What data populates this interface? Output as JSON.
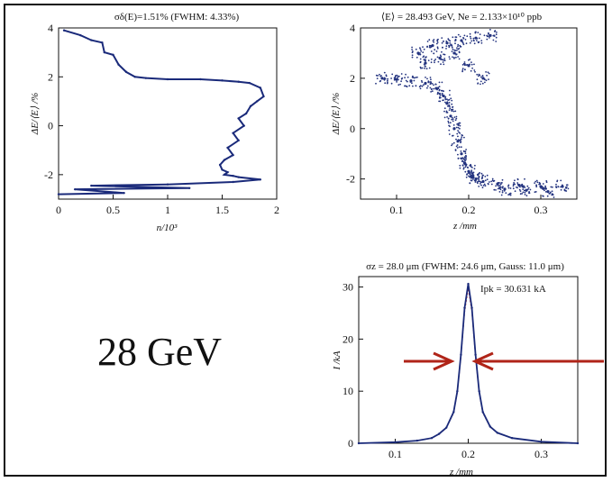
{
  "energy_label": "28 GeV",
  "colors": {
    "trace": "#1a2a7a",
    "scatter": "#23337f",
    "arrow": "#b02418",
    "fit": "#d23b30"
  },
  "chart_data": [
    {
      "type": "line",
      "title": "σδ(E)=1.51% (FWHM: 4.33%)",
      "xlabel": "n/10³",
      "ylabel": "ΔE/⟨E⟩ /%",
      "xlim": [
        0,
        2
      ],
      "ylim": [
        -3,
        4
      ],
      "xticks": [
        "0",
        "0.5",
        "1",
        "1.5",
        "2"
      ],
      "yticks": [
        "4",
        "2",
        "0",
        "-2"
      ],
      "series": [
        {
          "x": [
            0.05,
            0.2,
            0.3,
            0.4,
            0.42,
            0.5,
            0.55,
            0.62,
            0.7,
            0.8,
            1.0,
            1.3,
            1.5,
            1.65,
            1.75,
            1.85,
            1.88,
            1.82,
            1.76,
            1.72,
            1.65,
            1.7,
            1.6,
            1.65,
            1.55,
            1.6,
            1.52,
            1.48,
            1.5,
            1.55,
            1.52,
            1.6,
            1.65,
            1.85,
            1.6,
            1.0,
            0.3,
            1.2,
            0.15,
            0.6,
            0.0
          ],
          "y": [
            3.9,
            3.7,
            3.5,
            3.4,
            3.0,
            2.9,
            2.5,
            2.2,
            2.0,
            1.95,
            1.9,
            1.9,
            1.85,
            1.8,
            1.75,
            1.55,
            1.2,
            1.0,
            0.8,
            0.5,
            0.3,
            0.0,
            -0.3,
            -0.6,
            -0.9,
            -1.2,
            -1.4,
            -1.6,
            -1.8,
            -1.9,
            -2.0,
            -2.05,
            -2.1,
            -2.2,
            -2.3,
            -2.4,
            -2.45,
            -2.55,
            -2.6,
            -2.75,
            -2.8
          ]
        }
      ]
    },
    {
      "type": "scatter",
      "title": "⟨E⟩ = 28.493 GeV, Ne = 2.133×10¹⁰ ppb",
      "xlabel": "z /mm",
      "ylabel": "ΔE/⟨E⟩ /%",
      "xlim": [
        0.05,
        0.35
      ],
      "ylim": [
        -2.8,
        4
      ],
      "xticks": [
        "0.1",
        "0.2",
        "0.3"
      ],
      "yticks": [
        "4",
        "2",
        "0",
        "-2"
      ],
      "series": [
        {
          "x": [
            0.08,
            0.1,
            0.12,
            0.14,
            0.155,
            0.165,
            0.17,
            0.175,
            0.18,
            0.185,
            0.19,
            0.195,
            0.2,
            0.205,
            0.21,
            0.22,
            0.24,
            0.27,
            0.3,
            0.33,
            0.13,
            0.15,
            0.17,
            0.19,
            0.21,
            0.23,
            0.14,
            0.16,
            0.18,
            0.2,
            0.22,
            0.25,
            0.28,
            0.31
          ],
          "y": [
            2.0,
            1.95,
            1.9,
            1.8,
            1.6,
            1.3,
            1.0,
            0.5,
            0.0,
            -0.5,
            -1.0,
            -1.4,
            -1.7,
            -1.9,
            -2.0,
            -2.1,
            -2.2,
            -2.25,
            -2.3,
            -2.3,
            3.0,
            3.3,
            3.4,
            3.5,
            3.6,
            3.7,
            2.6,
            2.8,
            3.0,
            2.5,
            2.0,
            -2.4,
            -2.45,
            -2.5
          ]
        }
      ]
    },
    {
      "type": "line",
      "title": "σz = 28.0 μm (FWHM: 24.6 μm, Gauss: 11.0 μm)",
      "xlabel": "z /mm",
      "ylabel": "I /kA",
      "xlim": [
        0.05,
        0.35
      ],
      "ylim": [
        0,
        32
      ],
      "xticks": [
        "0.1",
        "0.2",
        "0.3"
      ],
      "yticks": [
        "30",
        "20",
        "10",
        "0"
      ],
      "annotation": "Ipk = 30.631 kA",
      "series": [
        {
          "x": [
            0.05,
            0.1,
            0.13,
            0.15,
            0.16,
            0.17,
            0.18,
            0.185,
            0.19,
            0.195,
            0.2,
            0.205,
            0.21,
            0.215,
            0.22,
            0.23,
            0.24,
            0.26,
            0.3,
            0.35
          ],
          "y": [
            0.0,
            0.2,
            0.5,
            1.0,
            1.8,
            3.0,
            6.0,
            10.0,
            17.0,
            26.0,
            30.6,
            26.0,
            17.0,
            10.0,
            6.0,
            3.2,
            2.0,
            1.0,
            0.3,
            0.0
          ]
        }
      ]
    }
  ]
}
